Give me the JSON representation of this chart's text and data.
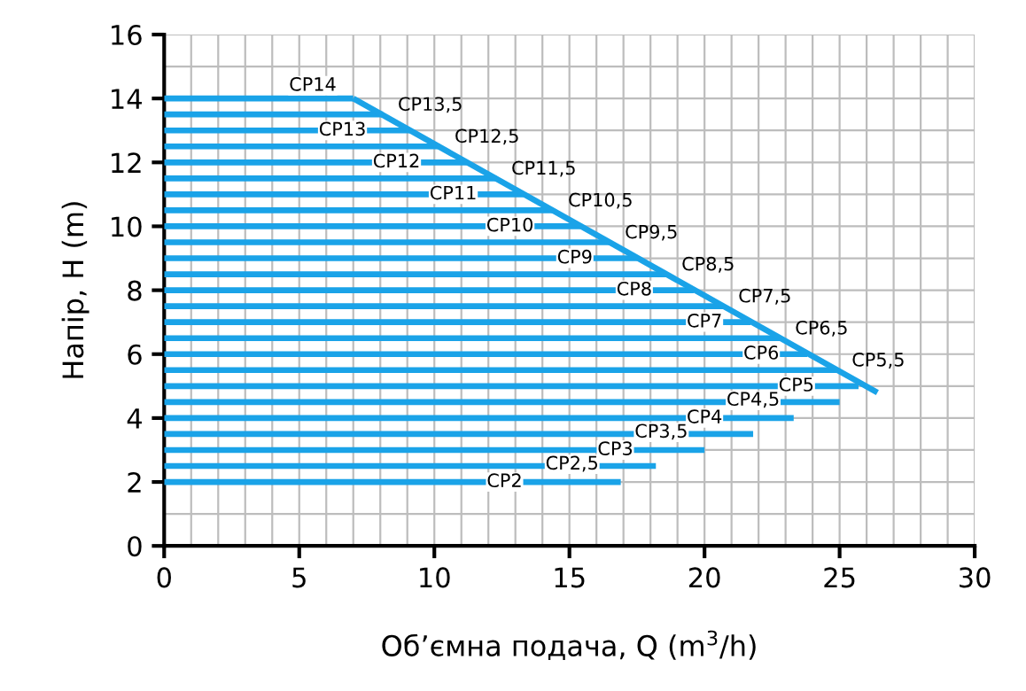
{
  "chart_data": {
    "type": "line",
    "xlabel": "Об’ємна подача, Q (m$^{3}$/h)",
    "ylabel": "Напір, H (m)",
    "xlim": [
      0,
      30
    ],
    "ylim": [
      0,
      16
    ],
    "xticks": [
      0,
      {
        "value": 1,
        "label": null
      },
      {
        "value": 2,
        "label": null
      },
      {
        "value": 3,
        "label": null
      },
      {
        "value": 4,
        "label": null
      },
      5,
      {
        "value": 6,
        "label": null
      },
      {
        "value": 7,
        "label": null
      },
      {
        "value": 8,
        "label": null
      },
      {
        "value": 9,
        "label": null
      },
      10,
      {
        "value": 11,
        "label": null
      },
      {
        "value": 12,
        "label": null
      },
      {
        "value": 13,
        "label": null
      },
      {
        "value": 14,
        "label": null
      },
      15,
      {
        "value": 16,
        "label": null
      },
      {
        "value": 17,
        "label": null
      },
      {
        "value": 18,
        "label": null
      },
      {
        "value": 19,
        "label": null
      },
      20,
      {
        "value": 21,
        "label": null
      },
      {
        "value": 22,
        "label": null
      },
      {
        "value": 23,
        "label": null
      },
      {
        "value": 24,
        "label": null
      },
      25,
      {
        "value": 26,
        "label": null
      },
      {
        "value": 27,
        "label": null
      },
      {
        "value": 28,
        "label": null
      },
      {
        "value": 29,
        "label": null
      },
      30
    ],
    "yticks": [
      0,
      {
        "value": 1,
        "label": null
      },
      2,
      {
        "value": 3,
        "label": null
      },
      4,
      {
        "value": 5,
        "label": null
      },
      6,
      {
        "value": 7,
        "label": null
      },
      8,
      {
        "value": 9,
        "label": null
      },
      10,
      {
        "value": 11,
        "label": null
      },
      12,
      {
        "value": 13,
        "label": null
      },
      14,
      {
        "value": 15,
        "label": null
      },
      16
    ],
    "grid": true,
    "marker": "none",
    "line_style": "solid",
    "series": [
      {
        "color": "#1aa3e8",
        "x": [
          0,
          7
        ],
        "values": [
          14,
          14
        ]
      },
      {
        "color": "#1aa3e8",
        "x": [
          0,
          8.1
        ],
        "values": [
          13.5,
          13.5
        ]
      },
      {
        "color": "#1aa3e8",
        "x": [
          0,
          9.1
        ],
        "values": [
          13,
          13
        ]
      },
      {
        "color": "#1aa3e8",
        "x": [
          0,
          10.2
        ],
        "values": [
          12.5,
          12.5
        ]
      },
      {
        "color": "#1aa3e8",
        "x": [
          0,
          11.2
        ],
        "values": [
          12,
          12
        ]
      },
      {
        "color": "#1aa3e8",
        "x": [
          0,
          12.3
        ],
        "values": [
          11.5,
          11.5
        ]
      },
      {
        "color": "#1aa3e8",
        "x": [
          0,
          13.3
        ],
        "values": [
          11,
          11
        ]
      },
      {
        "color": "#1aa3e8",
        "x": [
          0,
          14.4
        ],
        "values": [
          10.5,
          10.5
        ]
      },
      {
        "color": "#1aa3e8",
        "x": [
          0,
          15.4
        ],
        "values": [
          10,
          10
        ]
      },
      {
        "color": "#1aa3e8",
        "x": [
          0,
          16.5
        ],
        "values": [
          9.5,
          9.5
        ]
      },
      {
        "color": "#1aa3e8",
        "x": [
          0,
          17.5
        ],
        "values": [
          9,
          9
        ]
      },
      {
        "color": "#1aa3e8",
        "x": [
          0,
          18.6
        ],
        "values": [
          8.5,
          8.5
        ]
      },
      {
        "color": "#1aa3e8",
        "x": [
          0,
          19.6
        ],
        "values": [
          8,
          8
        ]
      },
      {
        "color": "#1aa3e8",
        "x": [
          0,
          20.7
        ],
        "values": [
          7.5,
          7.5
        ]
      },
      {
        "color": "#1aa3e8",
        "x": [
          0,
          21.7
        ],
        "values": [
          7,
          7
        ]
      },
      {
        "color": "#1aa3e8",
        "x": [
          0,
          22.8
        ],
        "values": [
          6.5,
          6.5
        ]
      },
      {
        "color": "#1aa3e8",
        "x": [
          0,
          23.8
        ],
        "values": [
          6,
          6
        ]
      },
      {
        "color": "#1aa3e8",
        "x": [
          0,
          24.9
        ],
        "values": [
          5.5,
          5.5
        ]
      },
      {
        "color": "#1aa3e8",
        "x": [
          0,
          25.7
        ],
        "values": [
          5,
          5
        ]
      },
      {
        "color": "#1aa3e8",
        "x": [
          0,
          25
        ],
        "values": [
          4.5,
          4.5
        ]
      },
      {
        "color": "#1aa3e8",
        "x": [
          0,
          23.3
        ],
        "values": [
          4,
          4
        ]
      },
      {
        "color": "#1aa3e8",
        "x": [
          0,
          21.8
        ],
        "values": [
          3.5,
          3.5
        ]
      },
      {
        "color": "#1aa3e8",
        "x": [
          0,
          20
        ],
        "values": [
          3,
          3
        ]
      },
      {
        "color": "#1aa3e8",
        "x": [
          0,
          18.2
        ],
        "values": [
          2.5,
          2.5
        ]
      },
      {
        "color": "#1aa3e8",
        "x": [
          0,
          16.9
        ],
        "values": [
          2,
          2
        ]
      },
      {
        "color": "#1aa3e8",
        "x": [
          7,
          26.4
        ],
        "values": [
          14,
          4.8
        ]
      }
    ],
    "annotations": [
      {
        "text": "CP14",
        "x": 5.5,
        "y": 14.4
      },
      {
        "text": "CP13,5",
        "x": 8.1,
        "y": 13.5
      },
      {
        "text": "CP13",
        "x": 6.6,
        "y": 13
      },
      {
        "text": "CP12,5",
        "x": 10.2,
        "y": 12.5
      },
      {
        "text": "CP12",
        "x": 8.6,
        "y": 12
      },
      {
        "text": "CP11,5",
        "x": 12.3,
        "y": 11.5
      },
      {
        "text": "CP11",
        "x": 10.7,
        "y": 11
      },
      {
        "text": "CP10,5",
        "x": 14.4,
        "y": 10.5
      },
      {
        "text": "CP10",
        "x": 12.8,
        "y": 10
      },
      {
        "text": "CP9,5",
        "x": 16.5,
        "y": 9.5
      },
      {
        "text": "CP9",
        "x": 15.2,
        "y": 9
      },
      {
        "text": "CP8,5",
        "x": 18.6,
        "y": 8.5
      },
      {
        "text": "CP8",
        "x": 17.4,
        "y": 8
      },
      {
        "text": "CP7,5",
        "x": 20.7,
        "y": 7.5
      },
      {
        "text": "CP7",
        "x": 20,
        "y": 7
      },
      {
        "text": "CP6,5",
        "x": 22.8,
        "y": 6.5
      },
      {
        "text": "CP6",
        "x": 22.1,
        "y": 6
      },
      {
        "text": "CP5,5",
        "x": 24.9,
        "y": 5.5
      },
      {
        "text": "CP5",
        "x": 23.4,
        "y": 5
      },
      {
        "text": "CP4,5",
        "x": 21.8,
        "y": 4.55
      },
      {
        "text": "CP4",
        "x": 20,
        "y": 4
      },
      {
        "text": "CP3,5",
        "x": 18.4,
        "y": 3.55
      },
      {
        "text": "CP3",
        "x": 16.7,
        "y": 3
      },
      {
        "text": "CP2,5",
        "x": 15.1,
        "y": 2.55
      },
      {
        "text": "CP2",
        "x": 12.6,
        "y": 2
      }
    ]
  }
}
